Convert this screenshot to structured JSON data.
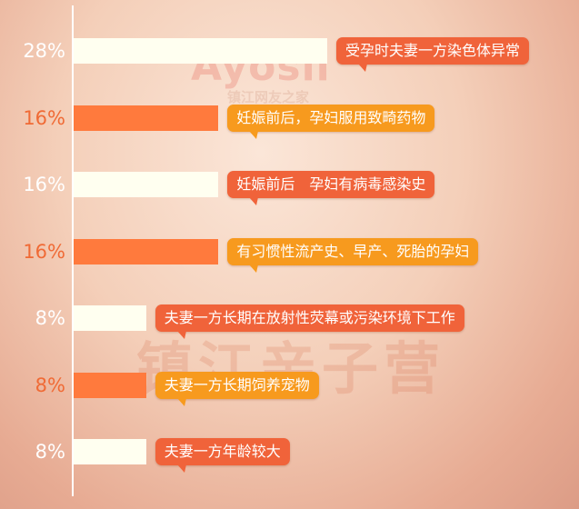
{
  "chart_data": {
    "type": "bar",
    "orientation": "horizontal",
    "title": "",
    "xlabel": "",
    "ylabel": "",
    "xlim": [
      0,
      28
    ],
    "grid": false,
    "categories": [
      "受孕时夫妻一方染色体异常",
      "妊娠前后，孕妇服用致畸药物",
      "妊娠前后　孕妇有病毒感染史",
      "有习惯性流产史、早产、死胎的孕妇",
      "夫妻一方长期在放射性荧幕或污染环境下工作",
      "夫妻一方长期饲养宠物",
      "夫妻一方年龄较大"
    ],
    "values": [
      28,
      16,
      16,
      16,
      8,
      8,
      8
    ],
    "value_labels": [
      "28%",
      "16%",
      "16%",
      "16%",
      "8%",
      "8%",
      "8%"
    ],
    "colors": {
      "white_bar": "#fffff0",
      "orange_bar": "#ff7a3d",
      "white_pct_text": "#ffffff",
      "orange_pct_text": "#f06a35",
      "callout_red": "#f0633a",
      "callout_amber": "#f79a1e"
    },
    "bar_colors": [
      "white_bar",
      "orange_bar",
      "white_bar",
      "orange_bar",
      "white_bar",
      "orange_bar",
      "white_bar"
    ],
    "callout_colors": [
      "callout_red",
      "callout_amber",
      "callout_red",
      "callout_amber",
      "callout_red",
      "callout_amber",
      "callout_red"
    ]
  },
  "watermarks": {
    "logo": "Ayosii",
    "logo_sub": "镇江网友之家",
    "bottom": "镇江亲子营"
  }
}
